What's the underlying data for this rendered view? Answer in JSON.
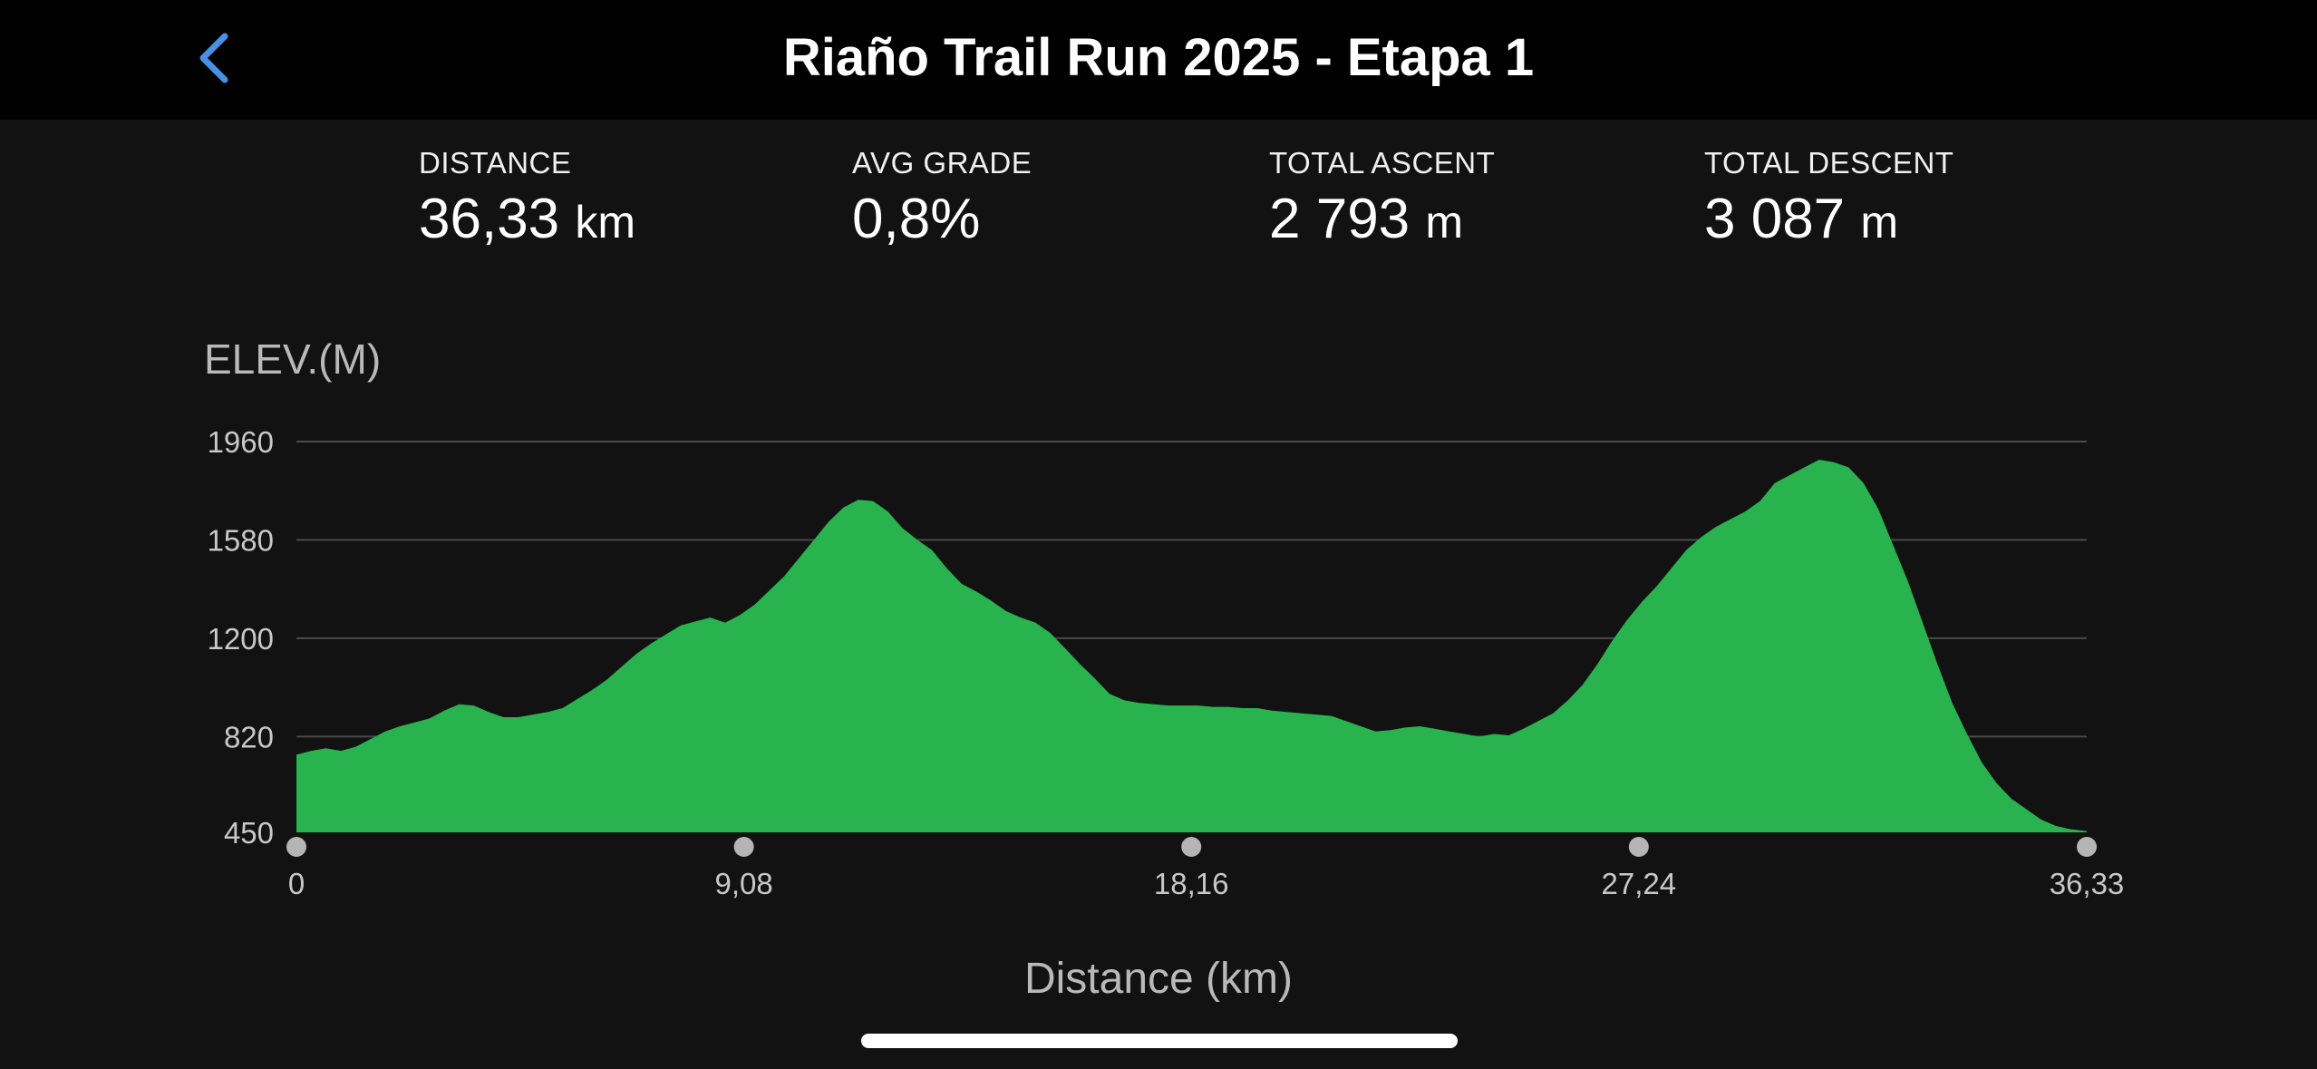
{
  "header": {
    "title": "Riaño Trail Run 2025 - Etapa 1",
    "back_icon": "chevron-left-icon",
    "accent_color": "#4a90e2"
  },
  "stats": [
    {
      "label": "DISTANCE",
      "value": "36,33",
      "unit": "km"
    },
    {
      "label": "AVG GRADE",
      "value": "0,8%",
      "unit": ""
    },
    {
      "label": "TOTAL ASCENT",
      "value": "2 793",
      "unit": "m"
    },
    {
      "label": "TOTAL DESCENT",
      "value": "3 087",
      "unit": "m"
    }
  ],
  "chart_data": {
    "type": "area",
    "title": "",
    "ylabel": "ELEV.(M)",
    "xlabel": "Distance (km)",
    "ylim": [
      450,
      1960
    ],
    "xlim": [
      0,
      36.33
    ],
    "y_ticks": [
      "1960",
      "1580",
      "1200",
      "820",
      "450"
    ],
    "x_ticks": [
      "0",
      "9,08",
      "18,16",
      "27,24",
      "36,33"
    ],
    "grid": true,
    "fill_color": "#28b34e",
    "series": [
      {
        "x": [
          0,
          0.3,
          0.6,
          0.9,
          1.2,
          1.5,
          1.8,
          2.1,
          2.4,
          2.7,
          3.0,
          3.3,
          3.6,
          3.9,
          4.2,
          4.5,
          4.8,
          5.1,
          5.4,
          5.7,
          6.0,
          6.3,
          6.6,
          6.9,
          7.2,
          7.5,
          7.8,
          8.1,
          8.4,
          8.7,
          9.0,
          9.3,
          9.6,
          9.9,
          10.2,
          10.5,
          10.8,
          11.1,
          11.4,
          11.7,
          12.0,
          12.3,
          12.6,
          12.9,
          13.2,
          13.5,
          13.8,
          14.1,
          14.4,
          14.7,
          15.0,
          15.3,
          15.6,
          15.9,
          16.2,
          16.5,
          16.8,
          17.1,
          17.4,
          17.7,
          18.0,
          18.3,
          18.6,
          18.9,
          19.2,
          19.5,
          19.8,
          20.1,
          20.4,
          20.7,
          21.0,
          21.3,
          21.6,
          21.9,
          22.2,
          22.5,
          22.8,
          23.1,
          23.4,
          23.7,
          24.0,
          24.3,
          24.6,
          24.9,
          25.2,
          25.5,
          25.8,
          26.1,
          26.4,
          26.7,
          27.0,
          27.3,
          27.6,
          27.9,
          28.2,
          28.5,
          28.8,
          29.1,
          29.4,
          29.7,
          30.0,
          30.3,
          30.6,
          30.9,
          31.2,
          31.5,
          31.8,
          32.1,
          32.4,
          32.7,
          33.0,
          33.3,
          33.6,
          33.9,
          34.2,
          34.5,
          34.8,
          35.1,
          35.4,
          35.7,
          36.0,
          36.33
        ],
        "y": [
          750,
          765,
          775,
          765,
          780,
          810,
          840,
          860,
          875,
          890,
          920,
          945,
          940,
          915,
          895,
          895,
          905,
          915,
          930,
          965,
          1000,
          1040,
          1090,
          1140,
          1180,
          1215,
          1250,
          1265,
          1280,
          1260,
          1290,
          1330,
          1385,
          1440,
          1510,
          1580,
          1650,
          1705,
          1735,
          1730,
          1690,
          1625,
          1580,
          1540,
          1470,
          1410,
          1380,
          1345,
          1305,
          1280,
          1260,
          1220,
          1160,
          1100,
          1045,
          985,
          960,
          950,
          945,
          940,
          940,
          940,
          935,
          935,
          930,
          930,
          920,
          915,
          910,
          905,
          900,
          880,
          860,
          840,
          845,
          855,
          860,
          850,
          840,
          830,
          820,
          830,
          825,
          850,
          880,
          910,
          960,
          1020,
          1100,
          1190,
          1270,
          1340,
          1400,
          1470,
          1540,
          1590,
          1630,
          1660,
          1690,
          1730,
          1800,
          1830,
          1860,
          1890,
          1880,
          1860,
          1800,
          1700,
          1560,
          1420,
          1260,
          1100,
          950,
          830,
          720,
          640,
          580,
          540,
          500,
          475,
          462,
          455
        ]
      }
    ]
  }
}
